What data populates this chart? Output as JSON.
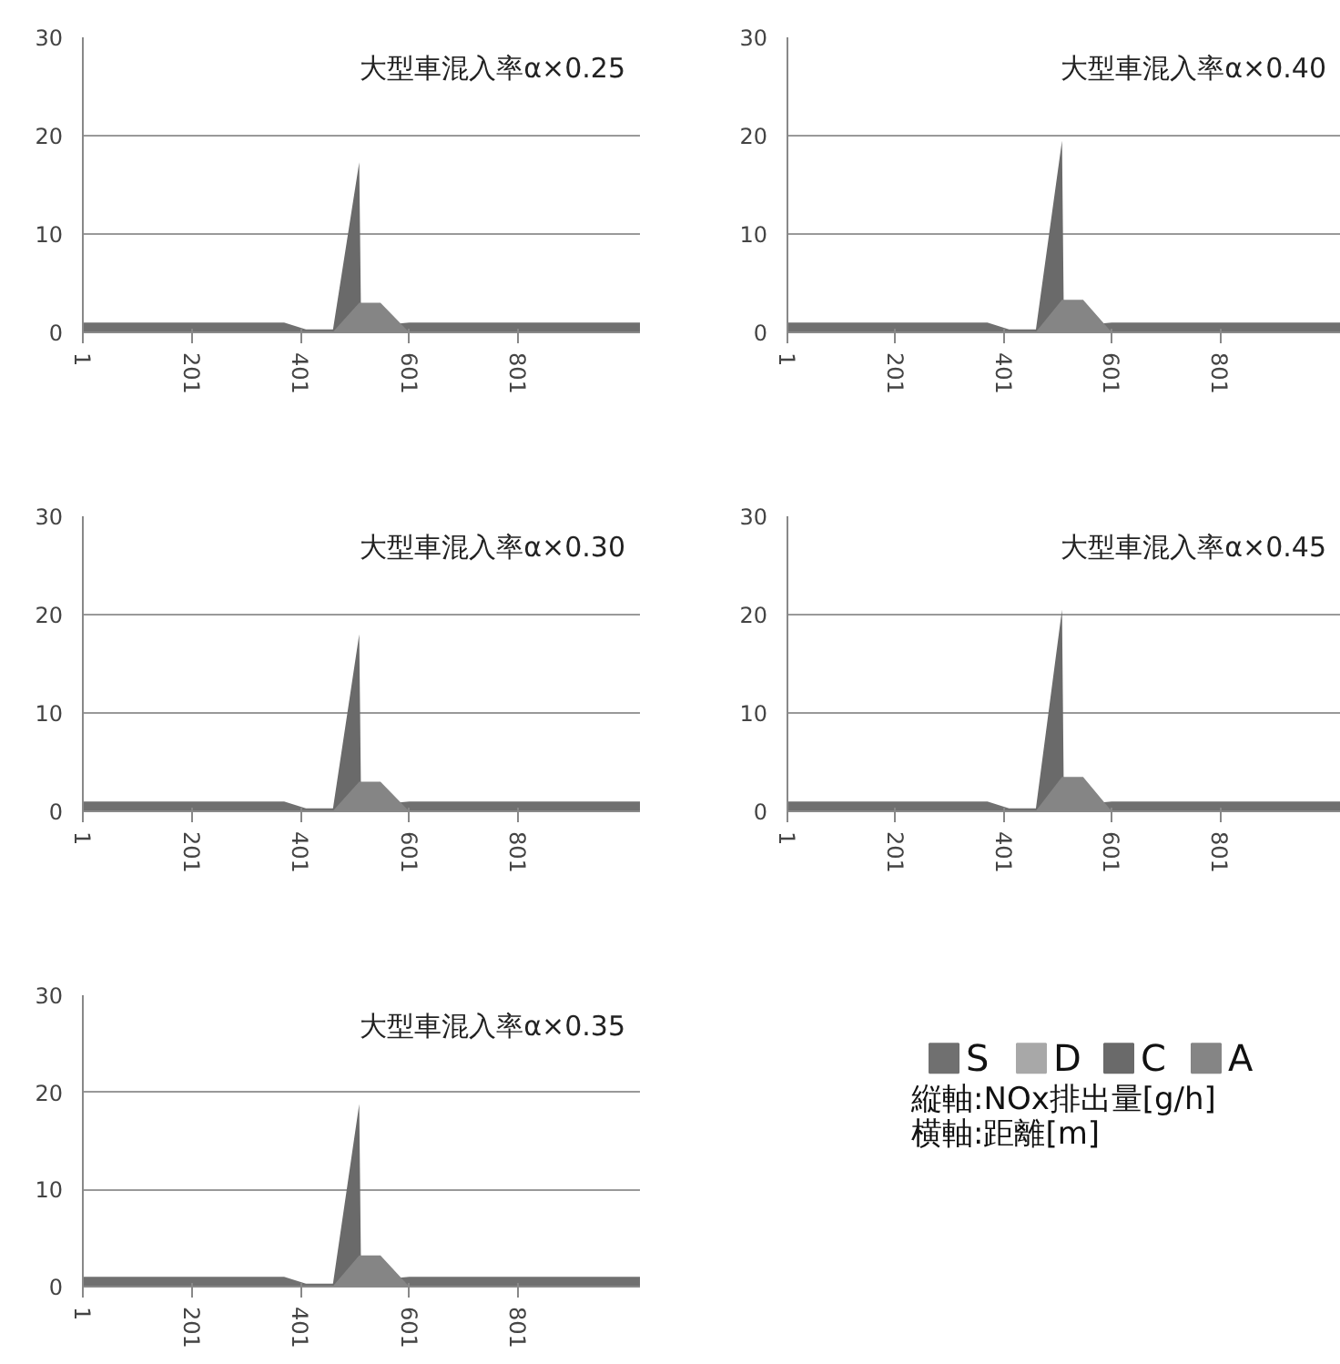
{
  "chart_data": [
    {
      "type": "area",
      "title": "大型車混入率α×0.25",
      "x": [
        1,
        371,
        411,
        460,
        509,
        512,
        548,
        601,
        1025
      ],
      "xlim": [
        1,
        1025
      ],
      "xticks": [
        1,
        201,
        401,
        601,
        801
      ],
      "ylim": [
        0,
        30
      ],
      "yticks": [
        0,
        10,
        20,
        30
      ],
      "grid": "y",
      "series": [
        {
          "color": "#6a6a6a",
          "values": [
            0,
            0,
            0,
            0,
            17.3,
            3,
            0,
            0,
            0
          ]
        },
        {
          "color": "#858585",
          "values": [
            0,
            0,
            0,
            0,
            3,
            3,
            3,
            0,
            0
          ]
        },
        {
          "color": "#a8a8a8",
          "values": [
            null,
            null,
            null,
            null,
            null,
            null,
            null,
            null,
            null
          ]
        },
        {
          "color": "#707070",
          "values": [
            1,
            1,
            0.3,
            0.3,
            null,
            null,
            null,
            1,
            1
          ]
        }
      ]
    },
    {
      "type": "area",
      "title": "大型車混入率α×0.40",
      "x": [
        1,
        371,
        411,
        460,
        509,
        512,
        548,
        601,
        1025
      ],
      "xlim": [
        1,
        1025
      ],
      "xticks": [
        1,
        201,
        401,
        601,
        801
      ],
      "ylim": [
        0,
        30
      ],
      "yticks": [
        0,
        10,
        20,
        30
      ],
      "grid": "y",
      "series": [
        {
          "color": "#6a6a6a",
          "values": [
            0,
            0,
            0,
            0,
            19.5,
            3.3,
            0,
            0,
            0
          ]
        },
        {
          "color": "#858585",
          "values": [
            0,
            0,
            0,
            0,
            3.3,
            3.3,
            3.3,
            0,
            0
          ]
        },
        {
          "color": "#a8a8a8",
          "values": [
            null,
            null,
            null,
            null,
            null,
            null,
            null,
            null,
            null
          ]
        },
        {
          "color": "#707070",
          "values": [
            1,
            1,
            0.3,
            0.3,
            null,
            null,
            null,
            1,
            1
          ]
        }
      ]
    },
    {
      "type": "area",
      "title": "大型車混入率α×0.30",
      "x": [
        1,
        371,
        411,
        460,
        509,
        512,
        548,
        601,
        1025
      ],
      "xlim": [
        1,
        1025
      ],
      "xticks": [
        1,
        201,
        401,
        601,
        801
      ],
      "ylim": [
        0,
        30
      ],
      "yticks": [
        0,
        10,
        20,
        30
      ],
      "grid": "y",
      "series": [
        {
          "color": "#6a6a6a",
          "values": [
            0,
            0,
            0,
            0,
            18,
            3,
            0,
            0,
            0
          ]
        },
        {
          "color": "#858585",
          "values": [
            0,
            0,
            0,
            0,
            3,
            3,
            3,
            0,
            0
          ]
        },
        {
          "color": "#a8a8a8",
          "values": [
            null,
            null,
            null,
            null,
            null,
            null,
            null,
            null,
            null
          ]
        },
        {
          "color": "#707070",
          "values": [
            1,
            1,
            0.3,
            0.3,
            null,
            null,
            null,
            1,
            1
          ]
        }
      ]
    },
    {
      "type": "area",
      "title": "大型車混入率α×0.45",
      "x": [
        1,
        371,
        411,
        460,
        509,
        512,
        548,
        601,
        1025
      ],
      "xlim": [
        1,
        1025
      ],
      "xticks": [
        1,
        201,
        401,
        601,
        801
      ],
      "ylim": [
        0,
        30
      ],
      "yticks": [
        0,
        10,
        20,
        30
      ],
      "grid": "y",
      "series": [
        {
          "color": "#6a6a6a",
          "values": [
            0,
            0,
            0,
            0,
            20.5,
            3.5,
            0,
            0,
            0
          ]
        },
        {
          "color": "#858585",
          "values": [
            0,
            0,
            0,
            0,
            3.5,
            3.5,
            3.5,
            0,
            0
          ]
        },
        {
          "color": "#a8a8a8",
          "values": [
            null,
            null,
            null,
            null,
            null,
            null,
            null,
            null,
            null
          ]
        },
        {
          "color": "#707070",
          "values": [
            1,
            1,
            0.3,
            0.3,
            null,
            null,
            null,
            1,
            1
          ]
        }
      ]
    },
    {
      "type": "area",
      "title": "大型車混入率α×0.35",
      "x": [
        1,
        371,
        411,
        460,
        509,
        512,
        548,
        601,
        1025
      ],
      "xlim": [
        1,
        1025
      ],
      "xticks": [
        1,
        201,
        401,
        601,
        801
      ],
      "ylim": [
        0,
        30
      ],
      "yticks": [
        0,
        10,
        20,
        30
      ],
      "grid": "y",
      "legend": "right",
      "annotations": [
        "縦軸:NOx排出量[g/h]",
        "横軸:距離[m]"
      ],
      "series": [
        {
          "name": "C",
          "color": "#6a6a6a",
          "values": [
            0,
            0,
            0,
            0,
            18.8,
            3.2,
            0,
            0,
            0
          ]
        },
        {
          "name": "A",
          "color": "#858585",
          "values": [
            0,
            0,
            0,
            0,
            3.2,
            3.2,
            3.2,
            0,
            0
          ]
        },
        {
          "name": "D",
          "color": "#a8a8a8",
          "values": [
            null,
            null,
            null,
            null,
            null,
            null,
            null,
            null,
            null
          ]
        },
        {
          "name": "S",
          "color": "#707070",
          "values": [
            1,
            1,
            0.3,
            0.3,
            null,
            null,
            null,
            1,
            1
          ]
        }
      ]
    }
  ]
}
